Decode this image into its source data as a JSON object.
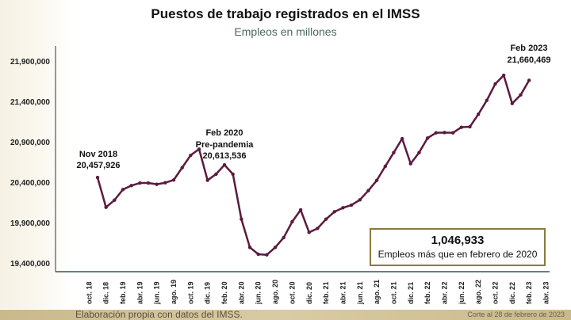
{
  "chart_data": {
    "type": "line",
    "title": "Puestos de trabajo registrados en el IMSS",
    "subtitle": "Empleos en millones",
    "ylim": [
      19400000,
      21900000
    ],
    "yticks": [
      "21,900,000",
      "21,400,000",
      "20,900,000",
      "20,400,000",
      "19,900,000",
      "19,400,000"
    ],
    "ytick_values": [
      21900000,
      21400000,
      20900000,
      20400000,
      19900000,
      19400000
    ],
    "xtick_labels": [
      "oct. 18",
      "dic. 18",
      "feb. 19",
      "abr. 19",
      "jun. 19",
      "ago. 19",
      "oct. 19",
      "dic. 19",
      "feb. 20",
      "abr. 20",
      "jun. 20",
      "ago. 20",
      "oct. 20",
      "dic. 20",
      "feb. 21",
      "abr. 21",
      "jun. 21",
      "ago. 21",
      "oct. 21",
      "dic. 21",
      "feb. 22",
      "abr. 22",
      "jun. 22",
      "ago. 22",
      "oct. 22",
      "dic. 22",
      "feb. 23",
      "abr. 23"
    ],
    "x_start": "nov. 18",
    "x_end": "feb. 23",
    "grid": false,
    "color": "#5c1a3f",
    "values": [
      20457926,
      20089000,
      20178000,
      20309000,
      20358000,
      20390000,
      20390000,
      20374000,
      20393000,
      20427000,
      20580000,
      20733000,
      20809000,
      20424000,
      20499000,
      20613536,
      20499000,
      19942000,
      19593000,
      19508000,
      19501000,
      19593000,
      19714000,
      19910000,
      20057000,
      19779000,
      19828000,
      19942000,
      20034000,
      20083000,
      20116000,
      20181000,
      20295000,
      20423000,
      20596000,
      20766000,
      20939000,
      20629000,
      20766000,
      20946000,
      21011000,
      21014000,
      21011000,
      21080000,
      21086000,
      21240000,
      21413000,
      21616000,
      21723000,
      21374000,
      21480000,
      21660469
    ],
    "annotations": [
      {
        "line1": "Nov 2018",
        "line2": "20,457,926"
      },
      {
        "line1": "Feb 2020",
        "line1b": "Pre-pandemia",
        "line2": "20,613,536"
      },
      {
        "line1": "Feb 2023",
        "line2": "21,660,469"
      }
    ]
  },
  "callout": {
    "value": "1,046,933",
    "text": "Empleos más que en febrero de 2020"
  },
  "footer": {
    "source": "Elaboración propia con datos del IMSS.",
    "cutoff": "Corte al 28 de febrero de 2023"
  }
}
